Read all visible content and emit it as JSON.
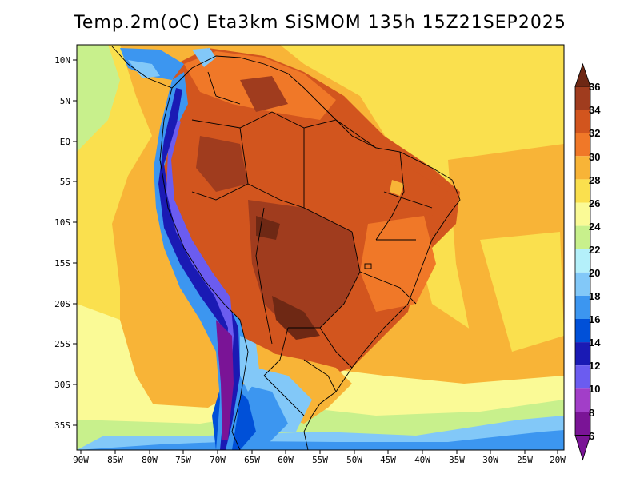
{
  "title": "Temp.2m(oC) Eta3km SiSMOM 135h 15Z21SEP2025",
  "map": {
    "lat_labels": [
      "10N",
      "5N",
      "EQ",
      "5S",
      "10S",
      "15S",
      "20S",
      "25S",
      "30S",
      "35S"
    ],
    "lon_labels": [
      "90W",
      "85W",
      "80W",
      "75W",
      "70W",
      "65W",
      "60W",
      "55W",
      "50W",
      "45W",
      "40W",
      "35W",
      "30W",
      "25W",
      "20W"
    ]
  },
  "colorbar": {
    "labels": [
      "36",
      "34",
      "32",
      "30",
      "28",
      "26",
      "24",
      "22",
      "20",
      "18",
      "16",
      "14",
      "12",
      "10",
      "8",
      "6"
    ],
    "colors": {
      "c6_8": "#7a1496",
      "c8_10": "#a23ec8",
      "c10_12": "#6b5cf0",
      "c12_14": "#1a1ab4",
      "c14_16": "#0050d8",
      "c16_18": "#3c96f0",
      "c18_20": "#82c8f8",
      "c20_22": "#b4f0fa",
      "c22_24": "#c8f08c",
      "c24_26": "#fafa96",
      "c26_28": "#fae04e",
      "c28_30": "#f8b437",
      "c30_32": "#f07828",
      "c32_34": "#d2551e",
      "c34_36": "#a03c1e",
      "c36_plus": "#6e2814"
    }
  }
}
